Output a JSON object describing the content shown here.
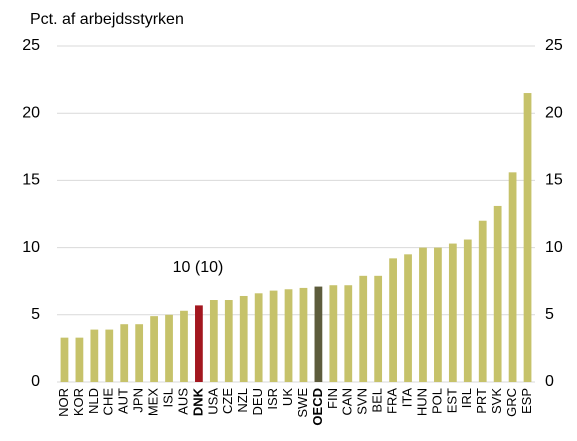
{
  "chart_data": {
    "type": "bar",
    "title": "Pct. af arbejdsstyrken",
    "annotation": "10 (10)",
    "categories": [
      "NOR",
      "KOR",
      "NLD",
      "CHE",
      "AUT",
      "JPN",
      "MEX",
      "ISL",
      "AUS",
      "DNK",
      "USA",
      "CZE",
      "NZL",
      "DEU",
      "ISR",
      "UK",
      "SWE",
      "OECD",
      "FIN",
      "CAN",
      "SVN",
      "BEL",
      "FRA",
      "ITA",
      "HUN",
      "POL",
      "EST",
      "IRL",
      "PRT",
      "SVK",
      "GRC",
      "ESP"
    ],
    "values": [
      3.3,
      3.3,
      3.9,
      3.9,
      4.3,
      4.3,
      4.9,
      5.0,
      5.3,
      5.7,
      6.1,
      6.1,
      6.4,
      6.6,
      6.8,
      6.9,
      7.0,
      7.1,
      7.2,
      7.2,
      7.9,
      7.9,
      9.2,
      9.5,
      10.0,
      10.0,
      10.3,
      10.6,
      12.0,
      13.1,
      15.6,
      21.5
    ],
    "colors": [
      "#c6c26a",
      "#c6c26a",
      "#c6c26a",
      "#c6c26a",
      "#c6c26a",
      "#c6c26a",
      "#c6c26a",
      "#c6c26a",
      "#c6c26a",
      "#a3171f",
      "#c6c26a",
      "#c6c26a",
      "#c6c26a",
      "#c6c26a",
      "#c6c26a",
      "#c6c26a",
      "#c6c26a",
      "#5d5c3c",
      "#c6c26a",
      "#c6c26a",
      "#c6c26a",
      "#c6c26a",
      "#c6c26a",
      "#c6c26a",
      "#c6c26a",
      "#c6c26a",
      "#c6c26a",
      "#c6c26a",
      "#c6c26a",
      "#c6c26a",
      "#c6c26a",
      "#c6c26a"
    ],
    "ylim": [
      0,
      25
    ],
    "yticks": [
      0,
      5,
      10,
      15,
      20,
      25
    ],
    "y2lim": [
      0,
      25
    ],
    "y2ticks": [
      0,
      5,
      10,
      15,
      20,
      25
    ],
    "grid": true
  }
}
